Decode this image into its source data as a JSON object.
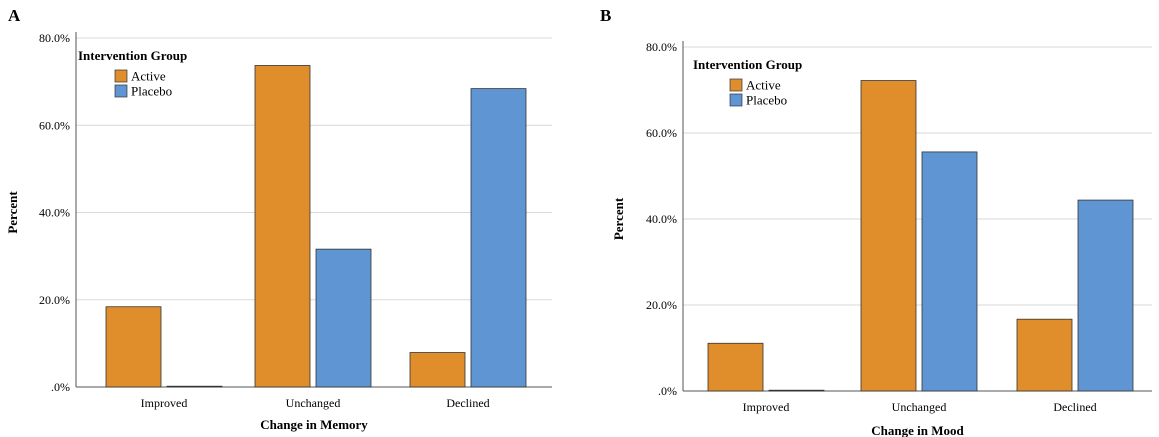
{
  "legend": {
    "title": "Intervention Group",
    "entries": [
      "Active",
      "Placebo"
    ]
  },
  "colors": {
    "Active": "#e08e2b",
    "Placebo": "#5e95d2",
    "grid": "#d9d9d9"
  },
  "chart_data": [
    {
      "type": "bar",
      "panel": "A",
      "categories": [
        "Improved",
        "Unchanged",
        "Declined"
      ],
      "series": [
        {
          "name": "Active",
          "values": [
            18.4,
            73.7,
            7.9
          ]
        },
        {
          "name": "Placebo",
          "values": [
            0.0,
            31.6,
            68.4
          ]
        }
      ],
      "xlabel": "Change in Memory",
      "ylabel": "Percent",
      "ylim": [
        0,
        80
      ],
      "yticks": [
        ".0%",
        "20.0%",
        "40.0%",
        "60.0%",
        "80.0%"
      ],
      "grid": true,
      "legend_position": "top-left"
    },
    {
      "type": "bar",
      "panel": "B",
      "categories": [
        "Improved",
        "Unchanged",
        "Declined"
      ],
      "series": [
        {
          "name": "Active",
          "values": [
            11.1,
            72.2,
            16.7
          ]
        },
        {
          "name": "Placebo",
          "values": [
            0.0,
            55.6,
            44.4
          ]
        }
      ],
      "xlabel": "Change in Mood",
      "ylabel": "Percent",
      "ylim": [
        0,
        80
      ],
      "yticks": [
        ".0%",
        "20.0%",
        "40.0%",
        "60.0%",
        "80.0%"
      ],
      "grid": true,
      "legend_position": "top-left"
    }
  ]
}
